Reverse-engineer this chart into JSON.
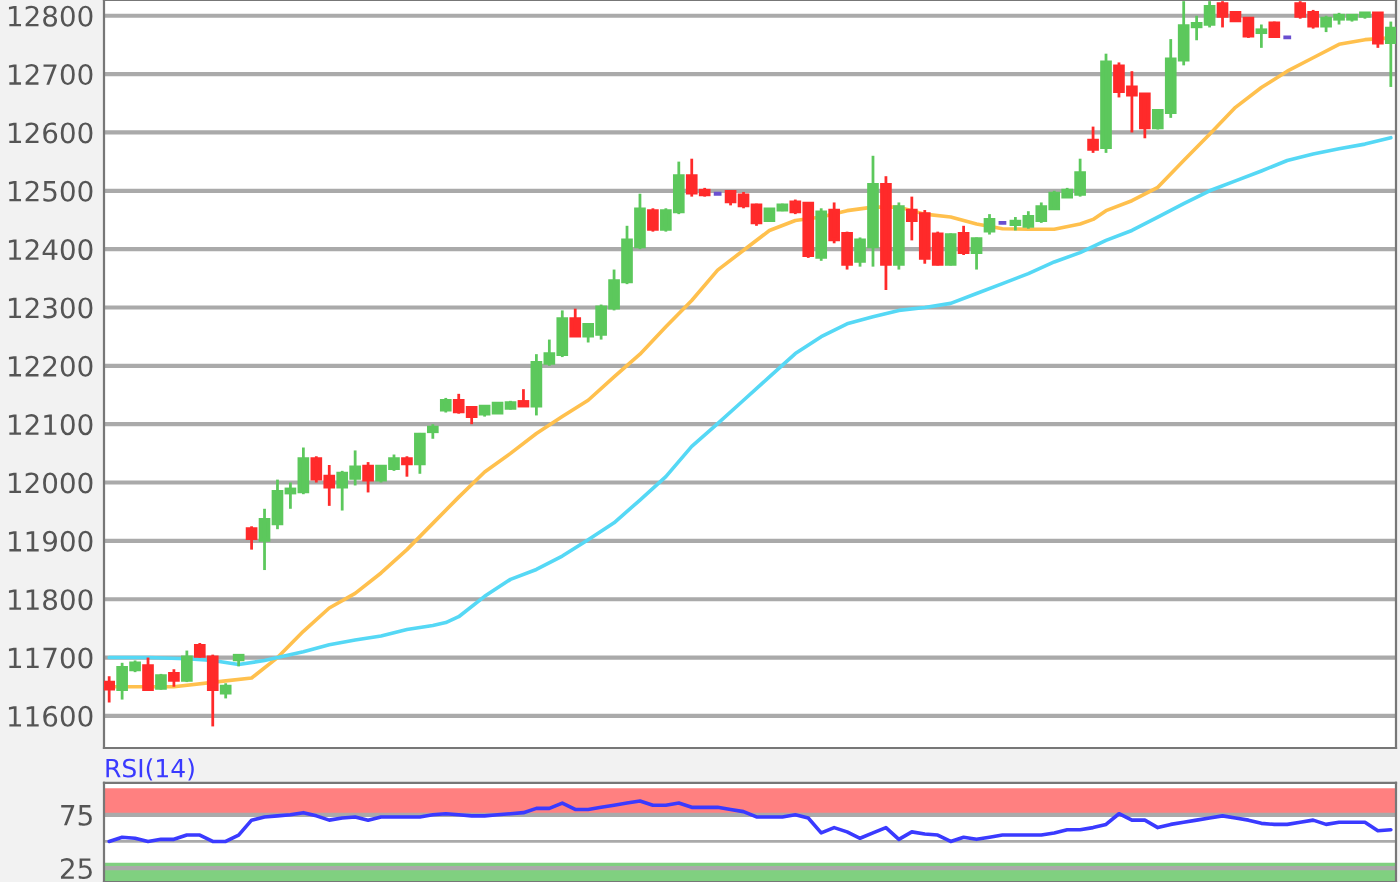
{
  "chart_data": [
    {
      "type": "candlestick",
      "categories": [
        null,
        null,
        null,
        null,
        null,
        null,
        null,
        null,
        null,
        null,
        null,
        null,
        null,
        null,
        null,
        null,
        null,
        null,
        null,
        null,
        null,
        null,
        null,
        null,
        null,
        null,
        null,
        null,
        null,
        null,
        null,
        null,
        null,
        null,
        null,
        null,
        null,
        null,
        null,
        null,
        null,
        null,
        null,
        null,
        null,
        null,
        null,
        null,
        null,
        null,
        null,
        null,
        null,
        null,
        null,
        null,
        null,
        null,
        null,
        null,
        null,
        null,
        null,
        null,
        null,
        null,
        null,
        null,
        null,
        null,
        null,
        null,
        null,
        null,
        null,
        null,
        null,
        null,
        null,
        null,
        null,
        null,
        null,
        null,
        null,
        null,
        null,
        null,
        null,
        null,
        null,
        null,
        null,
        null,
        null,
        null,
        null,
        null,
        null,
        null
      ],
      "ohlc": [
        [
          11657,
          11668,
          11623,
          11647
        ],
        [
          11646,
          11691,
          11628,
          11682
        ],
        [
          11680,
          11695,
          11675,
          11690
        ],
        [
          11685,
          11700,
          11646,
          11646
        ],
        [
          11648,
          11672,
          11645,
          11668
        ],
        [
          11672,
          11680,
          11650,
          11662
        ],
        [
          11662,
          11712,
          11658,
          11700
        ],
        [
          11720,
          11725,
          11700,
          11703
        ],
        [
          11700,
          11705,
          11582,
          11646
        ],
        [
          11640,
          11656,
          11630,
          11650
        ],
        [
          11697,
          11705,
          11685,
          11703
        ],
        [
          11920,
          11925,
          11885,
          11905
        ],
        [
          11902,
          11955,
          11850,
          11936
        ],
        [
          11930,
          12005,
          11920,
          11984
        ],
        [
          11983,
          12000,
          11955,
          11988
        ],
        [
          11985,
          12060,
          11980,
          12040
        ],
        [
          12040,
          12045,
          12000,
          12007
        ],
        [
          12010,
          12030,
          11960,
          11993
        ],
        [
          11993,
          12020,
          11952,
          12015
        ],
        [
          12008,
          12055,
          11995,
          12026
        ],
        [
          12027,
          12035,
          11983,
          12005
        ],
        [
          12005,
          12030,
          12000,
          12027
        ],
        [
          12025,
          12048,
          12020,
          12040
        ],
        [
          12040,
          12045,
          12010,
          12033
        ],
        [
          12033,
          12085,
          12015,
          12082
        ],
        [
          12088,
          12100,
          12075,
          12094
        ],
        [
          12125,
          12145,
          12120,
          12140
        ],
        [
          12140,
          12152,
          12118,
          12122
        ],
        [
          12128,
          12130,
          12100,
          12114
        ],
        [
          12118,
          12132,
          12113,
          12130
        ],
        [
          12120,
          12137,
          12118,
          12135
        ],
        [
          12128,
          12140,
          12125,
          12136
        ],
        [
          12138,
          12160,
          12130,
          12132
        ],
        [
          12132,
          12220,
          12115,
          12205
        ],
        [
          12205,
          12245,
          12200,
          12220
        ],
        [
          12220,
          12295,
          12215,
          12280
        ],
        [
          12280,
          12298,
          12250,
          12252
        ],
        [
          12252,
          12272,
          12240,
          12270
        ],
        [
          12255,
          12305,
          12245,
          12300
        ],
        [
          12300,
          12365,
          12295,
          12345
        ],
        [
          12345,
          12440,
          12340,
          12415
        ],
        [
          12405,
          12495,
          12400,
          12468
        ],
        [
          12465,
          12470,
          12430,
          12435
        ],
        [
          12435,
          12470,
          12430,
          12465
        ],
        [
          12465,
          12550,
          12460,
          12525
        ],
        [
          12525,
          12555,
          12490,
          12497
        ],
        [
          12500,
          12505,
          12490,
          12494
        ],
        [
          12495,
          12497,
          12493,
          12495
        ],
        [
          12498,
          12500,
          12475,
          12482
        ],
        [
          12492,
          12498,
          12470,
          12475
        ],
        [
          12475,
          12478,
          12440,
          12446
        ],
        [
          12450,
          12470,
          12448,
          12468
        ],
        [
          12468,
          12478,
          12465,
          12475
        ],
        [
          12480,
          12485,
          12460,
          12465
        ],
        [
          12478,
          12480,
          12385,
          12390
        ],
        [
          12387,
          12470,
          12380,
          12463
        ],
        [
          12466,
          12480,
          12410,
          12417
        ],
        [
          12426,
          12430,
          12365,
          12375
        ],
        [
          12380,
          12420,
          12370,
          12415
        ],
        [
          12405,
          12560,
          12370,
          12510
        ],
        [
          12510,
          12525,
          12330,
          12375
        ],
        [
          12375,
          12480,
          12365,
          12472
        ],
        [
          12466,
          12490,
          12415,
          12450
        ],
        [
          12460,
          12467,
          12375,
          12385
        ],
        [
          12425,
          12430,
          12372,
          12375
        ],
        [
          12375,
          12427,
          12372,
          12424
        ],
        [
          12426,
          12440,
          12390,
          12395
        ],
        [
          12395,
          12420,
          12365,
          12417
        ],
        [
          12432,
          12460,
          12425,
          12450
        ],
        [
          12445,
          12447,
          12443,
          12445
        ],
        [
          12443,
          12455,
          12432,
          12447
        ],
        [
          12440,
          12465,
          12435,
          12455
        ],
        [
          12450,
          12480,
          12445,
          12472
        ],
        [
          12470,
          12500,
          12468,
          12495
        ],
        [
          12490,
          12505,
          12488,
          12500
        ],
        [
          12495,
          12555,
          12490,
          12530
        ],
        [
          12586,
          12610,
          12565,
          12572
        ],
        [
          12575,
          12735,
          12565,
          12720
        ],
        [
          12713,
          12720,
          12660,
          12671
        ],
        [
          12677,
          12705,
          12600,
          12665
        ],
        [
          12665,
          12665,
          12590,
          12609
        ],
        [
          12609,
          12640,
          12605,
          12637
        ],
        [
          12635,
          12760,
          12625,
          12725
        ],
        [
          12725,
          12825,
          12715,
          12782
        ],
        [
          12782,
          12800,
          12758,
          12786
        ],
        [
          12786,
          12825,
          12780,
          12815
        ],
        [
          12820,
          12825,
          12780,
          12800
        ],
        [
          12805,
          12808,
          12790,
          12792
        ],
        [
          12795,
          12797,
          12762,
          12766
        ],
        [
          12772,
          12785,
          12745,
          12775
        ],
        [
          12787,
          12790,
          12765,
          12765
        ],
        [
          12763,
          12764,
          12762,
          12763
        ],
        [
          12820,
          12825,
          12795,
          12800
        ],
        [
          12805,
          12810,
          12778,
          12783
        ],
        [
          12783,
          12800,
          12772,
          12795
        ],
        [
          12795,
          12805,
          12785,
          12800
        ],
        [
          12795,
          12803,
          12790,
          12800
        ],
        [
          12800,
          12806,
          12795,
          12804
        ],
        [
          12804,
          12806,
          12745,
          12754
        ],
        [
          12755,
          12790,
          12678,
          12778
        ]
      ],
      "colors": [
        "#ff2a2a",
        "#5cc85c",
        "#5cc85c",
        "#ff2a2a",
        "#5cc85c",
        "#ff2a2a",
        "#5cc85c",
        "#ff2a2a",
        "#ff2a2a",
        "#5cc85c",
        "#5cc85c",
        "#ff2a2a",
        "#5cc85c",
        "#5cc85c",
        "#5cc85c",
        "#5cc85c",
        "#ff2a2a",
        "#ff2a2a",
        "#5cc85c",
        "#5cc85c",
        "#ff2a2a",
        "#5cc85c",
        "#5cc85c",
        "#ff2a2a",
        "#5cc85c",
        "#5cc85c",
        "#5cc85c",
        "#ff2a2a",
        "#ff2a2a",
        "#5cc85c",
        "#5cc85c",
        "#5cc85c",
        "#ff2a2a",
        "#5cc85c",
        "#5cc85c",
        "#5cc85c",
        "#ff2a2a",
        "#5cc85c",
        "#5cc85c",
        "#5cc85c",
        "#5cc85c",
        "#5cc85c",
        "#ff2a2a",
        "#5cc85c",
        "#5cc85c",
        "#ff2a2a",
        "#ff2a2a",
        "#6a4fd0",
        "#ff2a2a",
        "#ff2a2a",
        "#ff2a2a",
        "#5cc85c",
        "#5cc85c",
        "#ff2a2a",
        "#ff2a2a",
        "#5cc85c",
        "#ff2a2a",
        "#ff2a2a",
        "#5cc85c",
        "#5cc85c",
        "#ff2a2a",
        "#5cc85c",
        "#ff2a2a",
        "#ff2a2a",
        "#ff2a2a",
        "#5cc85c",
        "#ff2a2a",
        "#5cc85c",
        "#5cc85c",
        "#6a4fd0",
        "#5cc85c",
        "#5cc85c",
        "#5cc85c",
        "#5cc85c",
        "#5cc85c",
        "#5cc85c",
        "#ff2a2a",
        "#5cc85c",
        "#ff2a2a",
        "#ff2a2a",
        "#ff2a2a",
        "#5cc85c",
        "#5cc85c",
        "#5cc85c",
        "#5cc85c",
        "#5cc85c",
        "#ff2a2a",
        "#ff2a2a",
        "#ff2a2a",
        "#5cc85c",
        "#ff2a2a",
        "#6a4fd0",
        "#ff2a2a",
        "#ff2a2a",
        "#5cc85c",
        "#5cc85c",
        "#5cc85c",
        "#5cc85c",
        "#ff2a2a",
        "#5cc85c"
      ],
      "series": [
        {
          "type": "line",
          "color": "#ffc04d",
          "values": [
            11650,
            null,
            null,
            null,
            null,
            11650,
            null,
            null,
            null,
            11660,
            null,
            11665,
            null,
            11700,
            null,
            11745,
            null,
            11785,
            null,
            11810,
            null,
            11845,
            null,
            11885,
            null,
            11930,
            null,
            11975,
            null,
            12018,
            null,
            12050,
            null,
            12084,
            null,
            12113,
            null,
            12141,
            null,
            12181,
            null,
            12220,
            null,
            12267,
            null,
            12312,
            null,
            12364,
            null,
            12398,
            null,
            12432,
            null,
            12449,
            null,
            12455,
            null,
            12466,
            null,
            12472,
            null,
            12472,
            null,
            12460,
            null,
            12455,
            null,
            12443,
            null,
            12435,
            null,
            12434,
            null,
            12434,
            null,
            12443,
            12451,
            12466,
            null,
            12483,
            null,
            12506,
            null,
            12552,
            null,
            12597,
            null,
            12643,
            null,
            12677,
            null,
            12705,
            null,
            12728,
            null,
            12751,
            null,
            12759,
            null,
            12762
          ]
        },
        {
          "type": "line",
          "color": "#55d8f5",
          "values": [
            11700,
            null,
            null,
            11700,
            null,
            null,
            11698,
            null,
            11695,
            null,
            11688,
            null,
            11695,
            11700,
            null,
            11710,
            null,
            11722,
            null,
            11730,
            null,
            11737,
            null,
            11748,
            null,
            11755,
            11760,
            11770,
            null,
            11805,
            null,
            11834,
            null,
            11851,
            null,
            11874,
            null,
            11902,
            null,
            11931,
            null,
            11970,
            null,
            12010,
            null,
            12062,
            null,
            12101,
            null,
            12141,
            null,
            12181,
            null,
            12221,
            null,
            12250,
            null,
            12272,
            null,
            12284,
            null,
            12295,
            null,
            12300,
            null,
            12307,
            null,
            12324,
            null,
            12341,
            null,
            12358,
            null,
            12378,
            null,
            12394,
            null,
            12415,
            null,
            12432,
            null,
            12455,
            null,
            12478,
            null,
            12500,
            null,
            12517,
            null,
            12534,
            null,
            12552,
            null,
            12563,
            null,
            12572,
            null,
            12580,
            null,
            12591
          ]
        }
      ],
      "ylim": [
        11545,
        12827
      ],
      "yticks": [
        11600,
        11700,
        11800,
        11900,
        12000,
        12100,
        12200,
        12300,
        12400,
        12500,
        12600,
        12700,
        12800
      ],
      "grid": "y",
      "tick_labels": "y"
    },
    {
      "type": "line",
      "title": "RSI(14)",
      "categories": [
        null,
        null,
        null,
        null,
        null,
        null,
        null,
        null,
        null,
        null,
        null,
        null,
        null,
        null,
        null,
        null,
        null,
        null,
        null,
        null,
        null,
        null,
        null,
        null,
        null,
        null,
        null,
        null,
        null,
        null,
        null,
        null,
        null,
        null,
        null,
        null,
        null,
        null,
        null,
        null,
        null,
        null,
        null,
        null,
        null,
        null,
        null,
        null,
        null,
        null,
        null,
        null,
        null,
        null,
        null,
        null,
        null,
        null,
        null,
        null,
        null,
        null,
        null,
        null,
        null,
        null,
        null,
        null,
        null,
        null,
        null,
        null,
        null,
        null,
        null,
        null,
        null,
        null,
        null,
        null,
        null,
        null,
        null,
        null,
        null,
        null,
        null,
        null,
        null,
        null,
        null,
        null,
        null,
        null,
        null,
        null,
        null,
        null,
        null,
        null
      ],
      "series": [
        {
          "color": "#3a3aff",
          "values": [
            50,
            54,
            53,
            50,
            52,
            52,
            56,
            56,
            50,
            50,
            56,
            70,
            73,
            74,
            75,
            77,
            74,
            70,
            72,
            73,
            70,
            73,
            73,
            73,
            73,
            75,
            76,
            75,
            74,
            74,
            75,
            76,
            77,
            81,
            81,
            86,
            80,
            80,
            82,
            84,
            86,
            88,
            84,
            84,
            86,
            82,
            82,
            82,
            80,
            78,
            73,
            73,
            73,
            75,
            72,
            58,
            63,
            59,
            53,
            58,
            63,
            52,
            59,
            57,
            56,
            50,
            54,
            52,
            54,
            56,
            56,
            56,
            56,
            58,
            61,
            61,
            63,
            66,
            76,
            70,
            70,
            63,
            66,
            68,
            70,
            72,
            74,
            72,
            70,
            67,
            66,
            66,
            68,
            70,
            66,
            68,
            68,
            68,
            60,
            61
          ]
        }
      ],
      "bands": [
        {
          "axis": "y",
          "from": 75,
          "to": 100,
          "color": "#ff8080"
        },
        {
          "axis": "y",
          "from": 0,
          "to": 30,
          "color": "#80d080"
        }
      ],
      "ref_lines": [
        {
          "axis": "y",
          "value": 50,
          "color": "#aaaaaa"
        }
      ],
      "ylim": [
        12,
        105
      ],
      "yticks": [
        25,
        75
      ],
      "grid": "y",
      "tick_labels": "y"
    }
  ]
}
